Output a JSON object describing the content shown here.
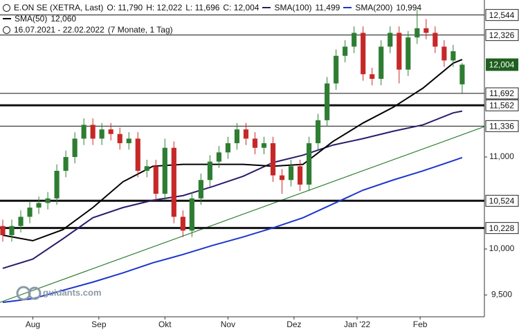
{
  "header": {
    "title": "E.ON SE (XETRA, Last)",
    "ohlc": [
      {
        "name": "O:",
        "value": 11.79,
        "label": "11,790"
      },
      {
        "name": "H:",
        "value": 12.022,
        "label": "12,022"
      },
      {
        "name": "L:",
        "value": 11.696,
        "label": "11,696"
      },
      {
        "name": "C:",
        "value": 12.004,
        "label": "12,004"
      }
    ],
    "period": "16.07.2021 - 22.02.2022",
    "duration": "(7 Monate, 1 Tag)"
  },
  "watermark": "guidants.com",
  "chart_data": {
    "type": "candlestick",
    "xlim": [
      -0.92,
      160.4
    ],
    "ylim": [
      9.263,
      12.707
    ],
    "xticks": [
      {
        "value": 10,
        "label": "Aug"
      },
      {
        "value": 32,
        "label": "Sep"
      },
      {
        "value": 54,
        "label": "Okt"
      },
      {
        "value": 75,
        "label": "Nov"
      },
      {
        "value": 97,
        "label": "Dez"
      },
      {
        "value": 118,
        "label": "Jan '22"
      },
      {
        "value": 139,
        "label": "Feb"
      }
    ],
    "yticks": [
      {
        "value": 9.5,
        "label": "9,500"
      },
      {
        "value": 10,
        "label": "10,000"
      },
      {
        "value": 11,
        "label": "11,000"
      }
    ],
    "up_color": "#2e7d32",
    "down_color": "#c62828",
    "candles": {
      "x": [
        0,
        3,
        6,
        9,
        12,
        15,
        18,
        21,
        24,
        27,
        30,
        33,
        36,
        39,
        42,
        45,
        48,
        51,
        54,
        57,
        60,
        63,
        66,
        69,
        72,
        75,
        78,
        81,
        84,
        87,
        90,
        93,
        96,
        99,
        102,
        105,
        108,
        111,
        114,
        117,
        120,
        123,
        126,
        129,
        132,
        135,
        138,
        141,
        144,
        147,
        150,
        153
      ],
      "open": [
        10.25,
        10.15,
        10.25,
        10.35,
        10.45,
        10.5,
        10.55,
        10.85,
        11.0,
        11.2,
        11.35,
        11.2,
        11.3,
        11.25,
        11.15,
        11.2,
        10.85,
        10.9,
        10.6,
        11.1,
        10.35,
        10.2,
        10.55,
        10.75,
        10.95,
        11.05,
        11.15,
        11.3,
        11.2,
        11.1,
        11.15,
        10.8,
        10.75,
        10.9,
        10.7,
        11.15,
        11.4,
        11.8,
        12.1,
        12.2,
        12.35,
        11.9,
        11.85,
        12.2,
        12.35,
        11.95,
        12.3,
        12.4,
        12.35,
        12.2,
        12.05,
        11.79
      ],
      "high": [
        10.32,
        10.32,
        10.42,
        10.52,
        10.57,
        10.62,
        10.92,
        11.07,
        11.27,
        11.42,
        11.42,
        11.37,
        11.37,
        11.32,
        11.27,
        11.27,
        10.97,
        10.97,
        11.2,
        11.17,
        10.42,
        10.62,
        10.82,
        11.02,
        11.12,
        11.22,
        11.37,
        11.37,
        11.27,
        11.22,
        11.22,
        10.87,
        10.97,
        10.97,
        11.22,
        11.47,
        11.87,
        12.17,
        12.27,
        12.42,
        12.42,
        11.97,
        12.27,
        12.42,
        12.42,
        12.37,
        12.6,
        12.5,
        12.42,
        12.27,
        12.22,
        12.022
      ],
      "low": [
        10.08,
        10.08,
        10.18,
        10.28,
        10.38,
        10.43,
        10.48,
        10.78,
        10.93,
        11.13,
        11.13,
        11.13,
        11.18,
        11.08,
        11.08,
        10.78,
        10.78,
        10.53,
        10.53,
        10.28,
        10.13,
        10.13,
        10.48,
        10.68,
        10.88,
        10.98,
        11.08,
        11.13,
        11.03,
        11.03,
        10.73,
        10.6,
        10.68,
        10.63,
        10.63,
        11.08,
        11.33,
        11.73,
        12.03,
        12.13,
        11.83,
        11.78,
        11.78,
        12.13,
        11.8,
        11.88,
        12.23,
        12.28,
        12.13,
        11.98,
        11.98,
        11.696
      ],
      "close": [
        10.15,
        10.25,
        10.35,
        10.45,
        10.5,
        10.55,
        10.85,
        11.0,
        11.2,
        11.35,
        11.2,
        11.3,
        11.25,
        11.15,
        11.2,
        10.85,
        10.9,
        10.6,
        11.1,
        10.35,
        10.2,
        10.55,
        10.75,
        10.95,
        11.05,
        11.15,
        11.3,
        11.2,
        11.1,
        11.15,
        10.8,
        10.75,
        10.9,
        10.7,
        11.15,
        11.4,
        11.8,
        12.1,
        12.2,
        12.35,
        11.9,
        11.85,
        12.2,
        12.35,
        11.95,
        12.3,
        12.4,
        12.35,
        12.2,
        12.05,
        12.15,
        12.004
      ]
    },
    "series": [
      {
        "name": "SMA(100)",
        "color": "#2b1a6b",
        "last": {
          "value": 11.499,
          "label": "11,499"
        },
        "x": [
          0,
          10,
          20,
          30,
          40,
          50,
          60,
          70,
          80,
          90,
          100,
          110,
          120,
          130,
          140,
          150,
          153
        ],
        "values": [
          9.79,
          9.89,
          10.11,
          10.34,
          10.45,
          10.53,
          10.58,
          10.68,
          10.79,
          10.94,
          11.02,
          11.13,
          11.2,
          11.28,
          11.35,
          11.48,
          11.499
        ]
      },
      {
        "name": "SMA(200)",
        "color": "#1a35d0",
        "last": {
          "value": 10.994,
          "label": "10,994"
        },
        "x": [
          0,
          10,
          20,
          30,
          40,
          50,
          60,
          70,
          80,
          90,
          100,
          110,
          120,
          130,
          140,
          150,
          153
        ],
        "values": [
          9.42,
          9.46,
          9.55,
          9.64,
          9.74,
          9.85,
          9.94,
          10.04,
          10.13,
          10.23,
          10.34,
          10.49,
          10.64,
          10.75,
          10.85,
          10.96,
          10.994
        ]
      },
      {
        "name": "SMA(50)",
        "color": "#000000",
        "last": {
          "value": 12.06,
          "label": "12,060"
        },
        "x": [
          0,
          10,
          20,
          30,
          40,
          50,
          60,
          70,
          80,
          90,
          100,
          110,
          120,
          130,
          140,
          150,
          153
        ],
        "values": [
          10.15,
          10.09,
          10.21,
          10.45,
          10.73,
          10.9,
          10.92,
          10.92,
          10.92,
          10.9,
          10.92,
          11.17,
          11.37,
          11.54,
          11.75,
          12.02,
          12.06
        ]
      }
    ],
    "trendline": {
      "color": "#2e7d32",
      "x": [
        -0.92,
        160.4
      ],
      "values": [
        9.42,
        11.33
      ]
    },
    "levels": [
      {
        "value": 12.544,
        "label": "12,544",
        "thick": false
      },
      {
        "value": 12.326,
        "label": "12,326",
        "thick": false
      },
      {
        "value": 11.692,
        "label": "11,692",
        "thick": false
      },
      {
        "value": 11.562,
        "label": "11,562",
        "thick": true
      },
      {
        "value": 11.336,
        "label": "11,336",
        "thick": false
      },
      {
        "value": 10.524,
        "label": "10,524",
        "thick": true
      },
      {
        "value": 10.228,
        "label": "10,228",
        "thick": true
      }
    ],
    "last_price": {
      "value": 12.004,
      "label": "12,004",
      "color": "#1f5f1f"
    }
  }
}
